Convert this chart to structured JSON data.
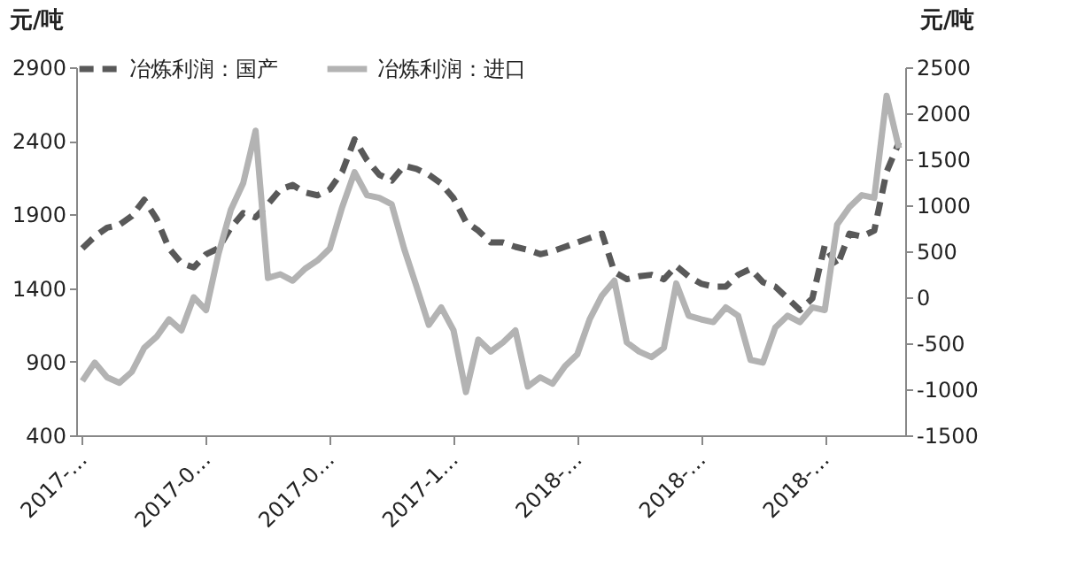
{
  "chart_data": {
    "type": "line",
    "ylabel": "元/吨",
    "y2label": "元/吨",
    "categories": [
      "2017-…",
      null,
      null,
      null,
      null,
      null,
      null,
      null,
      null,
      null,
      "2017-0…",
      null,
      null,
      null,
      null,
      null,
      null,
      null,
      null,
      null,
      "2017-0…",
      null,
      null,
      null,
      null,
      null,
      null,
      null,
      null,
      null,
      "2017-1…",
      null,
      null,
      null,
      null,
      null,
      null,
      null,
      null,
      null,
      "2018-…",
      null,
      null,
      null,
      null,
      null,
      null,
      null,
      null,
      null,
      "2018-…",
      null,
      null,
      null,
      null,
      null,
      null,
      null,
      null,
      null,
      "2018-…",
      null,
      null,
      null,
      null,
      null,
      null
    ],
    "series": [
      {
        "name": "冶炼利润：国产",
        "color": "#595959",
        "line_style": "dashed",
        "values": [
          1670,
          1750,
          1810,
          1830,
          1890,
          2000,
          1870,
          1670,
          1570,
          1540,
          1630,
          1670,
          1810,
          1910,
          1880,
          1970,
          2070,
          2100,
          2050,
          2030,
          2070,
          2190,
          2410,
          2270,
          2170,
          2130,
          2230,
          2210,
          2170,
          2110,
          2010,
          1850,
          1790,
          1710,
          1710,
          1680,
          1660,
          1630,
          1650,
          1680,
          1710,
          1740,
          1770,
          1510,
          1460,
          1480,
          1490,
          1460,
          1550,
          1480,
          1430,
          1410,
          1410,
          1490,
          1530,
          1440,
          1410,
          1330,
          1250,
          1330,
          1690,
          1550,
          1770,
          1750,
          1790,
          2190,
          2390
        ]
      },
      {
        "name": "冶炼利润：进口",
        "color": "#b3b3b3",
        "line_style": "solid",
        "axis": "y2",
        "values": [
          -910,
          -710,
          -870,
          -930,
          -810,
          -550,
          -430,
          -240,
          -360,
          0,
          -140,
          470,
          950,
          1240,
          1810,
          210,
          250,
          180,
          310,
          400,
          530,
          980,
          1360,
          1110,
          1080,
          1010,
          530,
          120,
          -300,
          -110,
          -360,
          -1030,
          -460,
          -590,
          -490,
          -360,
          -970,
          -870,
          -940,
          -750,
          -620,
          -240,
          20,
          180,
          -490,
          -590,
          -650,
          -550,
          150,
          -200,
          -240,
          -270,
          -110,
          -200,
          -680,
          -710,
          -330,
          -200,
          -270,
          -110,
          -140,
          790,
          980,
          1110,
          1080,
          2190,
          1620
        ]
      }
    ],
    "ylim": [
      400,
      2900
    ],
    "yticks": [
      400,
      900,
      1400,
      1900,
      2400,
      2900
    ],
    "y2lim": [
      -1500,
      2500
    ],
    "y2ticks": [
      -1500,
      -1000,
      -500,
      0,
      500,
      1000,
      1500,
      2000,
      2500
    ],
    "grid": false,
    "legend": "top"
  }
}
